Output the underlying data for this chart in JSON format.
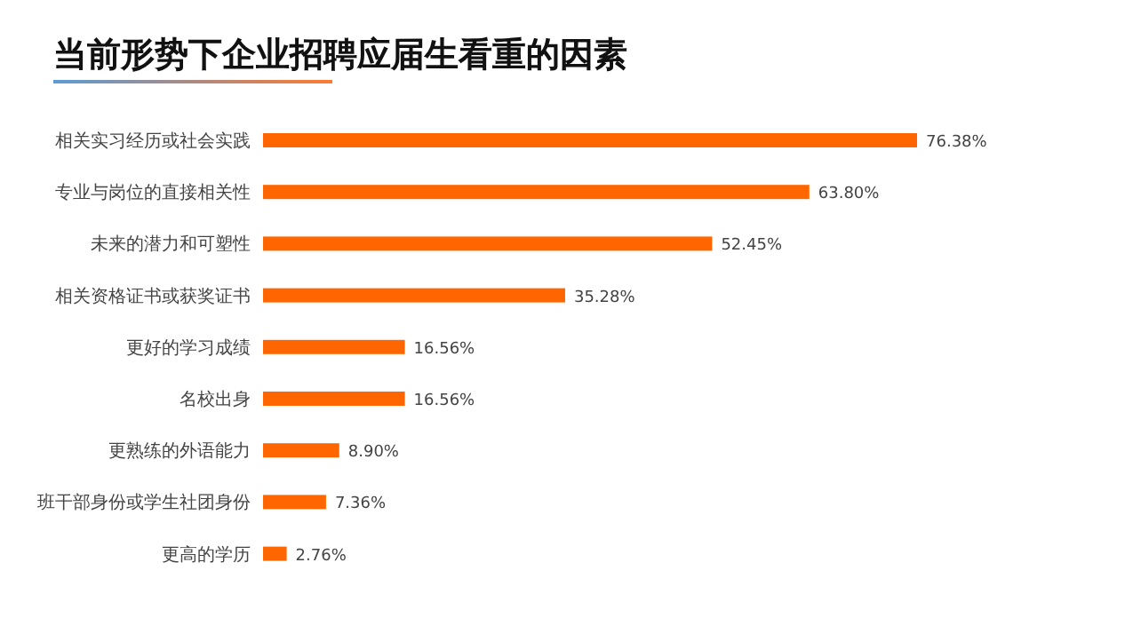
{
  "chart_data": {
    "type": "bar",
    "orientation": "horizontal",
    "title": "当前形势下企业招聘应届生看重的因素",
    "categories": [
      "相关实习经历或社会实践",
      "专业与岗位的直接相关性",
      "未来的潜力和可塑性",
      "相关资格证书或获奖证书",
      "更好的学习成绩",
      "名校出身",
      "更熟练的外语能力",
      "班干部身份或学生社团身份",
      "更高的学历"
    ],
    "values": [
      76.38,
      63.8,
      52.45,
      35.28,
      16.56,
      16.56,
      8.9,
      7.36,
      2.76
    ],
    "value_labels": [
      "76.38%",
      "63.80%",
      "52.45%",
      "35.28%",
      "16.56%",
      "16.56%",
      "8.90%",
      "7.36%",
      "2.76%"
    ],
    "color": "#ff6600"
  }
}
